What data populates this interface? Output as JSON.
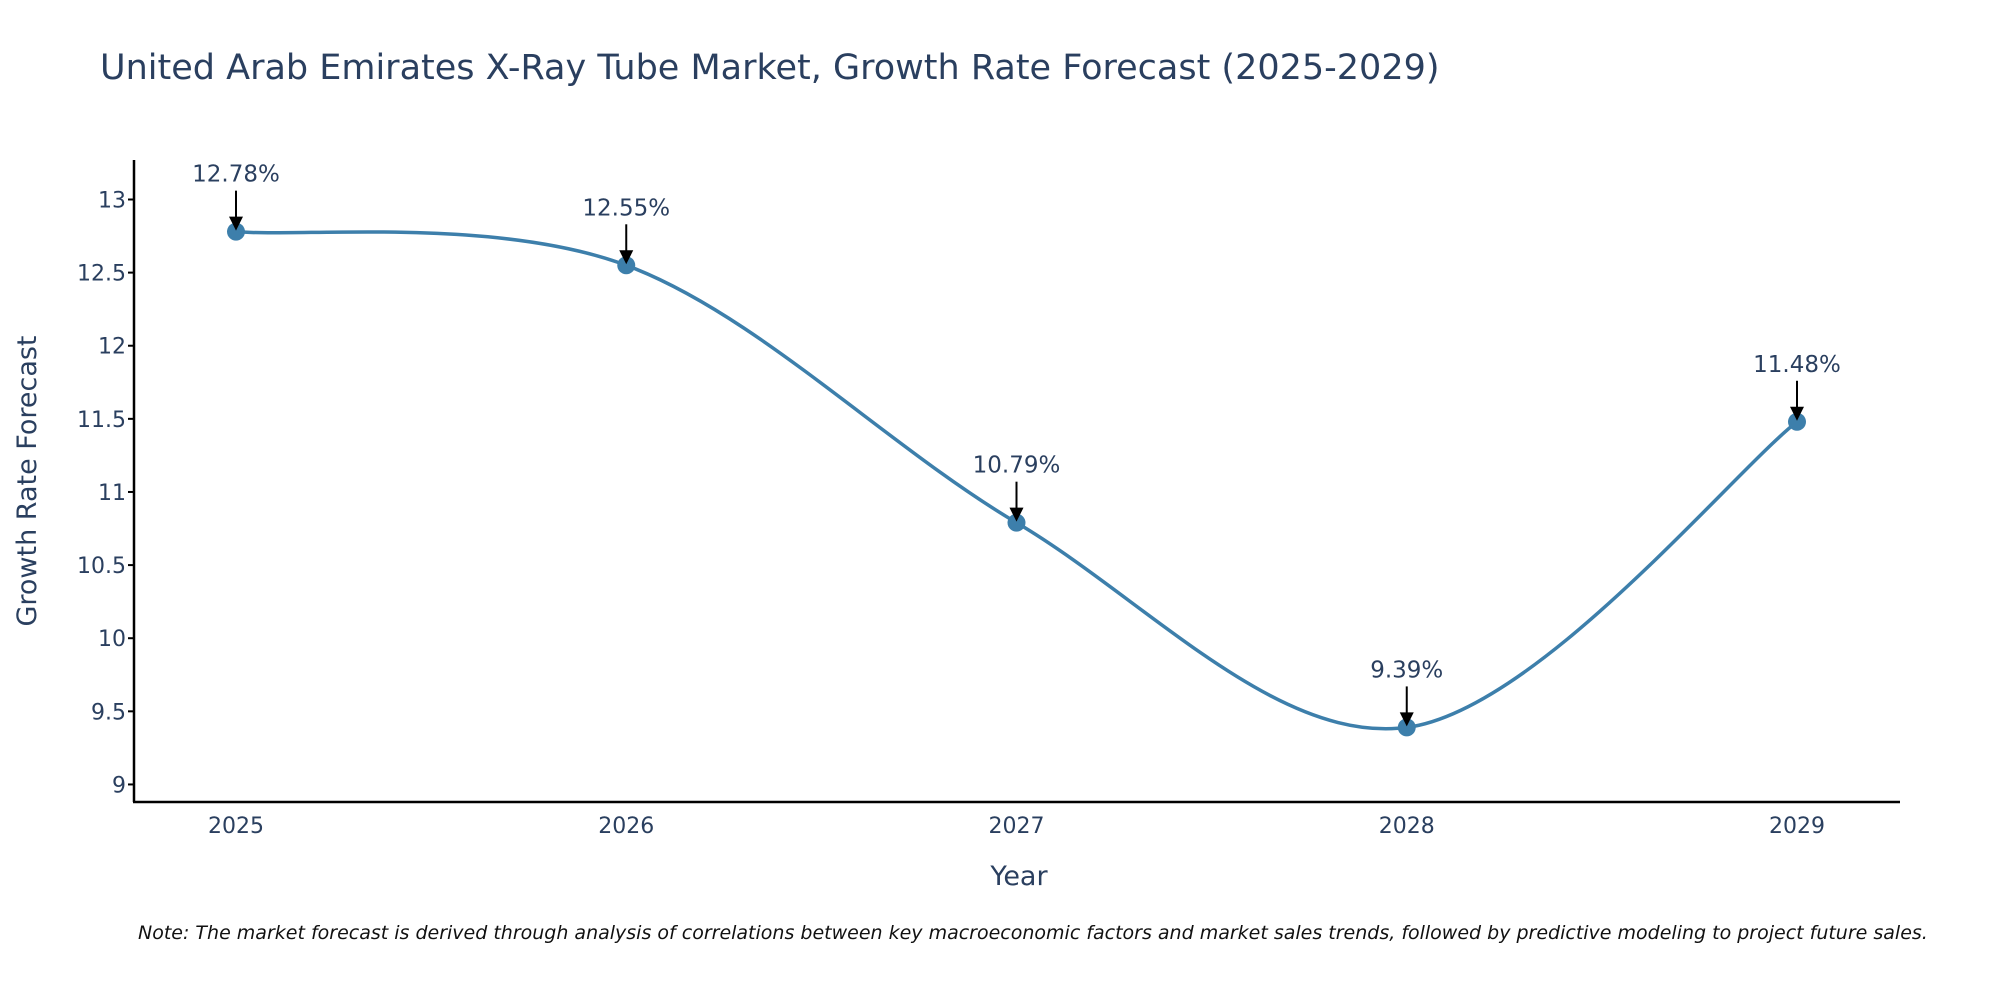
{
  "chart_data": {
    "type": "line",
    "title": "United Arab Emirates X-Ray Tube Market, Growth Rate Forecast (2025-2029)",
    "xlabel": "Year",
    "ylabel": "Growth Rate Forecast",
    "categories": [
      "2025",
      "2026",
      "2027",
      "2028",
      "2029"
    ],
    "series": [
      {
        "name": "Growth Rate Forecast",
        "values": [
          12.78,
          12.55,
          10.79,
          9.39,
          11.48
        ],
        "data_labels": [
          "12.78%",
          "12.55%",
          "10.79%",
          "9.39%",
          "11.48%"
        ]
      }
    ],
    "ylim": [
      8.88,
      13.27
    ],
    "yticks": [
      9,
      9.5,
      10,
      10.5,
      11,
      11.5,
      12,
      12.5,
      13
    ],
    "ytick_labels": [
      "9",
      "9.5",
      "10",
      "10.5",
      "11",
      "11.5",
      "12",
      "12.5",
      "13"
    ],
    "line_shape": "spline",
    "grid": false,
    "legend": "none",
    "note": "Note: The market forecast is derived through analysis of correlations between key macroeconomic factors and market sales trends, followed by predictive modeling to project future sales.",
    "colors": {
      "line": "#3d7fab",
      "marker": "#3d7fab",
      "arrow": "#000000",
      "text": "#2a3f5f",
      "axis": "#000000"
    }
  }
}
